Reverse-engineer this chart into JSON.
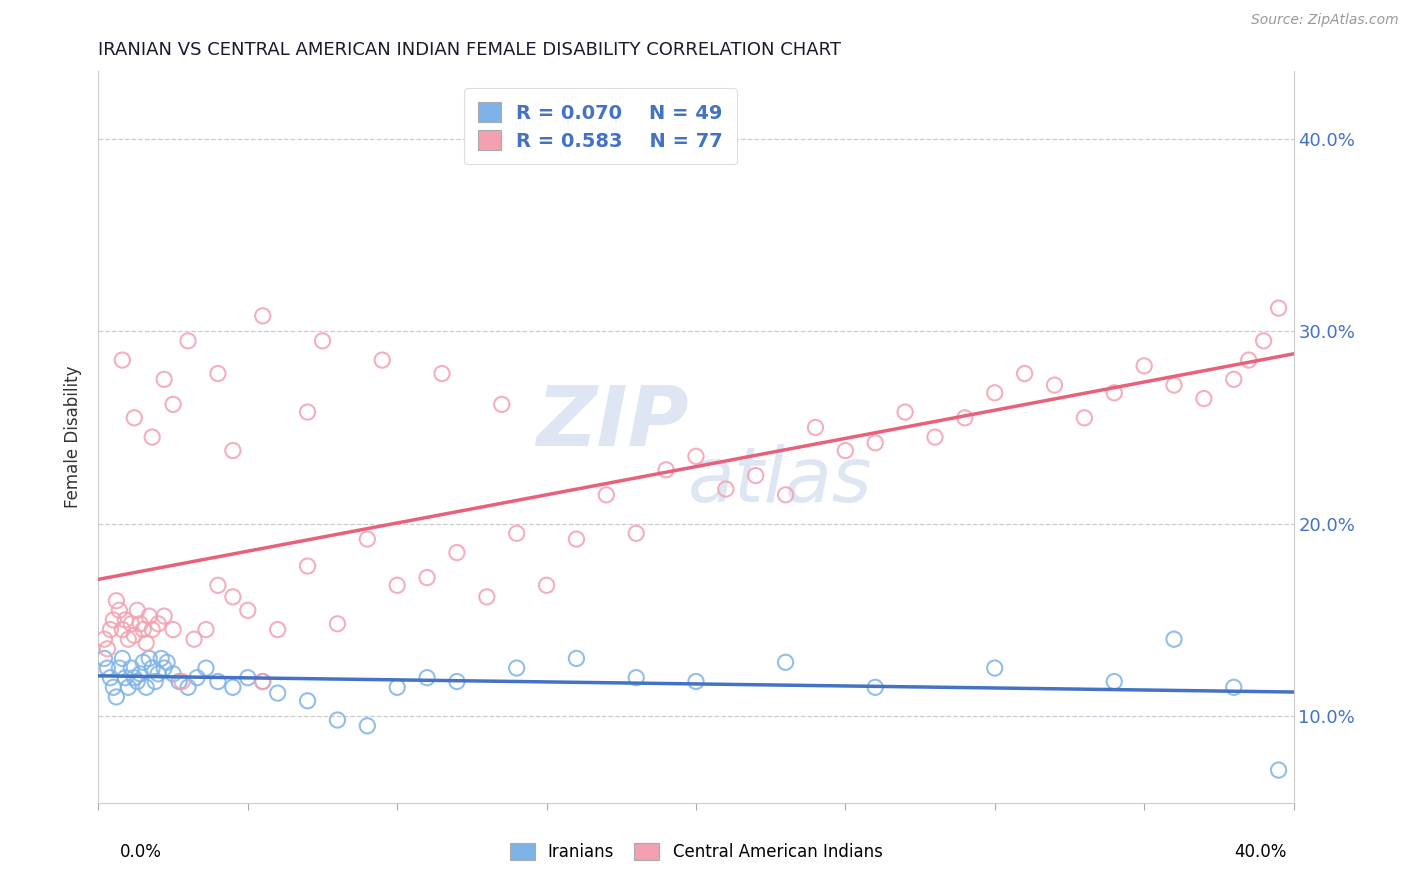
{
  "title": "IRANIAN VS CENTRAL AMERICAN INDIAN FEMALE DISABILITY CORRELATION CHART",
  "source": "Source: ZipAtlas.com",
  "ylabel": "Female Disability",
  "xmin": 0.0,
  "xmax": 0.4,
  "ymin": 0.055,
  "ymax": 0.435,
  "yticks": [
    0.1,
    0.2,
    0.3,
    0.4
  ],
  "ytick_labels": [
    "10.0%",
    "20.0%",
    "30.0%",
    "40.0%"
  ],
  "legend_r1": "R = 0.070",
  "legend_n1": "N = 49",
  "legend_r2": "R = 0.583",
  "legend_n2": "N = 77",
  "color_iranian": "#7EB3E8",
  "color_central": "#F4A0B0",
  "color_iranian_line": "#4472C4",
  "color_central_line": "#E8607A",
  "iranian_x": [
    0.002,
    0.003,
    0.004,
    0.005,
    0.006,
    0.007,
    0.008,
    0.009,
    0.01,
    0.011,
    0.012,
    0.013,
    0.014,
    0.015,
    0.016,
    0.017,
    0.018,
    0.019,
    0.02,
    0.021,
    0.022,
    0.023,
    0.025,
    0.027,
    0.03,
    0.033,
    0.036,
    0.04,
    0.045,
    0.05,
    0.055,
    0.06,
    0.07,
    0.08,
    0.09,
    0.1,
    0.11,
    0.12,
    0.14,
    0.16,
    0.18,
    0.2,
    0.23,
    0.26,
    0.3,
    0.34,
    0.36,
    0.38,
    0.395
  ],
  "iranian_y": [
    0.13,
    0.125,
    0.12,
    0.115,
    0.11,
    0.125,
    0.13,
    0.12,
    0.115,
    0.125,
    0.12,
    0.118,
    0.122,
    0.128,
    0.115,
    0.13,
    0.125,
    0.118,
    0.122,
    0.13,
    0.125,
    0.128,
    0.122,
    0.118,
    0.115,
    0.12,
    0.125,
    0.118,
    0.115,
    0.12,
    0.118,
    0.112,
    0.108,
    0.098,
    0.095,
    0.115,
    0.12,
    0.118,
    0.125,
    0.13,
    0.12,
    0.118,
    0.128,
    0.115,
    0.125,
    0.118,
    0.14,
    0.115,
    0.072
  ],
  "central_x": [
    0.002,
    0.003,
    0.004,
    0.005,
    0.006,
    0.007,
    0.008,
    0.009,
    0.01,
    0.011,
    0.012,
    0.013,
    0.014,
    0.015,
    0.016,
    0.017,
    0.018,
    0.02,
    0.022,
    0.025,
    0.028,
    0.032,
    0.036,
    0.04,
    0.045,
    0.05,
    0.055,
    0.06,
    0.07,
    0.08,
    0.09,
    0.1,
    0.11,
    0.12,
    0.13,
    0.14,
    0.15,
    0.16,
    0.17,
    0.18,
    0.19,
    0.2,
    0.21,
    0.22,
    0.23,
    0.24,
    0.25,
    0.26,
    0.27,
    0.28,
    0.29,
    0.3,
    0.31,
    0.32,
    0.33,
    0.34,
    0.35,
    0.36,
    0.37,
    0.38,
    0.385,
    0.39,
    0.395,
    0.07,
    0.045,
    0.025,
    0.018,
    0.012,
    0.008,
    0.022,
    0.03,
    0.04,
    0.055,
    0.075,
    0.095,
    0.115,
    0.135
  ],
  "central_y": [
    0.14,
    0.135,
    0.145,
    0.15,
    0.16,
    0.155,
    0.145,
    0.15,
    0.14,
    0.148,
    0.142,
    0.155,
    0.148,
    0.145,
    0.138,
    0.152,
    0.145,
    0.148,
    0.152,
    0.145,
    0.118,
    0.14,
    0.145,
    0.168,
    0.162,
    0.155,
    0.118,
    0.145,
    0.178,
    0.148,
    0.192,
    0.168,
    0.172,
    0.185,
    0.162,
    0.195,
    0.168,
    0.192,
    0.215,
    0.195,
    0.228,
    0.235,
    0.218,
    0.225,
    0.215,
    0.25,
    0.238,
    0.242,
    0.258,
    0.245,
    0.255,
    0.268,
    0.278,
    0.272,
    0.255,
    0.268,
    0.282,
    0.272,
    0.265,
    0.275,
    0.285,
    0.295,
    0.312,
    0.258,
    0.238,
    0.262,
    0.245,
    0.255,
    0.285,
    0.275,
    0.295,
    0.278,
    0.308,
    0.295,
    0.285,
    0.278,
    0.262
  ]
}
